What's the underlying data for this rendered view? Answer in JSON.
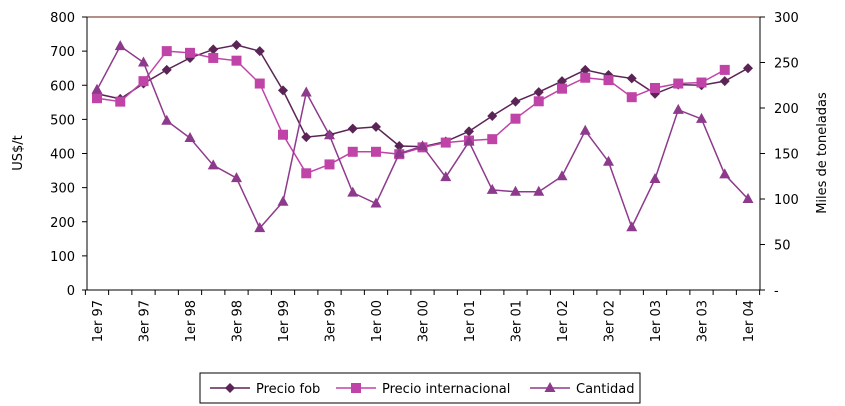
{
  "chart_data": {
    "type": "line",
    "categories": [
      "1er 97",
      null,
      "3er 97",
      null,
      "1er 98",
      null,
      "3er 98",
      null,
      "1er 99",
      null,
      "3er 99",
      null,
      "1er 00",
      null,
      "3er 00",
      null,
      "1er 01",
      null,
      "3er 01",
      null,
      "1er 02",
      null,
      "3er 02",
      null,
      "1er 03",
      null,
      "3er 03",
      null,
      "1er 04"
    ],
    "ylabel": "US$/t",
    "y2label": "Miles de toneladas",
    "ylim": [
      0,
      800
    ],
    "yticks": [
      0,
      100,
      200,
      300,
      400,
      500,
      600,
      700,
      800
    ],
    "y2lim": [
      0,
      300
    ],
    "y2ticks": [
      {
        "value": 0,
        "label": "-"
      },
      50,
      100,
      150,
      200,
      250,
      300
    ],
    "legend": "bottom",
    "series": [
      {
        "name": "Precio fob",
        "color": "#5b2456",
        "marker": "diamond",
        "values": [
          575,
          560,
          605,
          645,
          680,
          705,
          718,
          700,
          585,
          448,
          455,
          473,
          478,
          422,
          420,
          435,
          465,
          510,
          552,
          580,
          612,
          645,
          630,
          620,
          575,
          602,
          600,
          612,
          650
        ]
      },
      {
        "name": "Precio internacional",
        "color": "#c044a8",
        "marker": "square",
        "values": [
          562,
          552,
          612,
          700,
          695,
          680,
          672,
          605,
          455,
          342,
          368,
          405,
          405,
          398,
          418,
          432,
          438,
          442,
          502,
          553,
          590,
          622,
          615,
          565,
          592,
          605,
          608,
          645,
          null
        ]
      },
      {
        "name": "Cantidad",
        "color": "#8e3a8c",
        "marker": "triangle",
        "axis": "y2",
        "values": [
          220,
          268,
          250,
          186,
          167,
          137,
          123,
          68,
          97,
          217,
          170,
          107,
          95,
          150,
          158,
          124,
          163,
          110,
          108,
          108,
          125,
          175,
          141,
          69,
          122,
          198,
          188,
          127,
          100
        ]
      }
    ]
  }
}
